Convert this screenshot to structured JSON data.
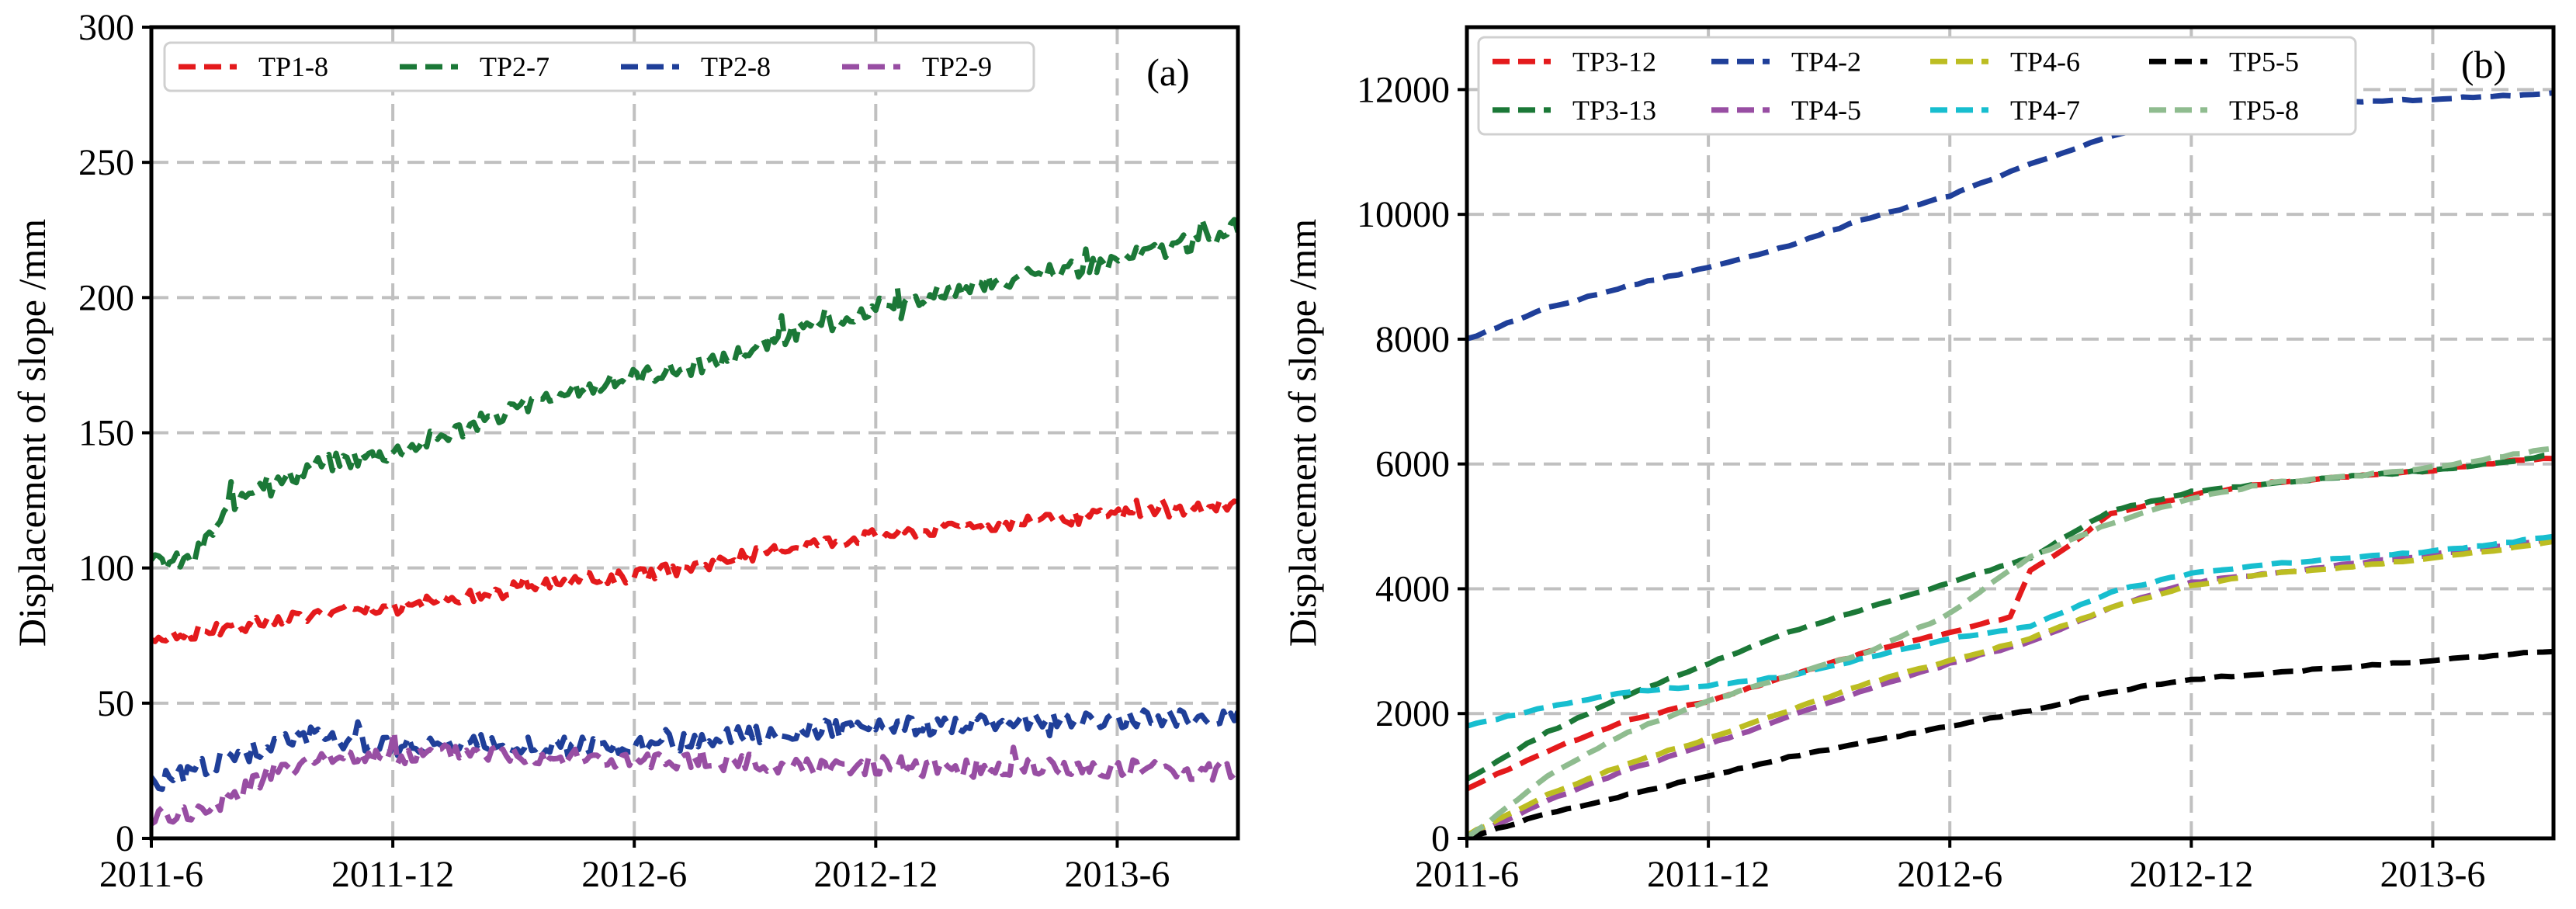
{
  "chart_data": [
    {
      "panel_label": "(a)",
      "type": "line",
      "title": "",
      "xlabel": "",
      "ylabel": "Displacement of slope /mm",
      "xlim": [
        0,
        27
      ],
      "ylim": [
        0,
        300
      ],
      "x_ticks": [
        {
          "label": "2011-6",
          "value": 0
        },
        {
          "label": "2011-12",
          "value": 6
        },
        {
          "label": "2012-6",
          "value": 12
        },
        {
          "label": "2012-12",
          "value": 18
        },
        {
          "label": "2013-6",
          "value": 24
        }
      ],
      "y_ticks": [
        0,
        50,
        100,
        150,
        200,
        250,
        300
      ],
      "grid": true,
      "legend_position": "top",
      "legend_columns": 4,
      "x_unit": "months since 2011-6",
      "series": [
        {
          "name": "TP1-8",
          "color": "#e41a1c",
          "noise": 2.5,
          "x": [
            0,
            2,
            4,
            6,
            8,
            10,
            12,
            14,
            16,
            18,
            20,
            22,
            24,
            26,
            27
          ],
          "y": [
            74,
            78,
            83,
            85,
            90,
            95,
            97,
            102,
            108,
            112,
            115,
            117,
            120,
            122,
            124
          ]
        },
        {
          "name": "TP2-7",
          "color": "#1b7837",
          "noise": 3.5,
          "x": [
            0,
            1,
            2,
            4,
            6,
            8,
            10,
            12,
            14,
            16,
            18,
            20,
            22,
            24,
            26,
            27
          ],
          "y": [
            102,
            103,
            123,
            138,
            143,
            153,
            163,
            171,
            176,
            187,
            196,
            203,
            208,
            214,
            221,
            226
          ]
        },
        {
          "name": "TP2-8",
          "color": "#1f3f99",
          "noise": 3.5,
          "x": [
            0,
            2,
            4,
            6,
            8,
            10,
            12,
            14,
            16,
            18,
            20,
            22,
            24,
            26,
            27
          ],
          "y": [
            20,
            30,
            38,
            34,
            35,
            34,
            34,
            37,
            40,
            41,
            42,
            43,
            44,
            44,
            45
          ]
        },
        {
          "name": "TP2-9",
          "color": "#984ea3",
          "noise": 3.5,
          "x": [
            0,
            1,
            2,
            3,
            4,
            6,
            8,
            10,
            12,
            14,
            16,
            18,
            20,
            22,
            24,
            26,
            27
          ],
          "y": [
            8,
            10,
            15,
            25,
            28,
            30,
            32,
            30,
            28,
            28,
            27,
            27,
            26,
            26,
            26,
            25,
            25
          ]
        }
      ]
    },
    {
      "panel_label": "(b)",
      "type": "line",
      "title": "",
      "xlabel": "",
      "ylabel": "Displacement of slope /mm",
      "xlim": [
        0,
        27
      ],
      "ylim": [
        0,
        13000
      ],
      "x_ticks": [
        {
          "label": "2011-6",
          "value": 0
        },
        {
          "label": "2011-12",
          "value": 6
        },
        {
          "label": "2012-6",
          "value": 12
        },
        {
          "label": "2012-12",
          "value": 18
        },
        {
          "label": "2013-6",
          "value": 24
        }
      ],
      "y_ticks": [
        0,
        2000,
        4000,
        6000,
        8000,
        10000,
        12000
      ],
      "grid": true,
      "legend_position": "top",
      "legend_columns": 4,
      "x_unit": "months since 2011-6",
      "series": [
        {
          "name": "TP3-12",
          "color": "#e41a1c",
          "noise": 0,
          "x": [
            0,
            2,
            4,
            6,
            8,
            10,
            12,
            13.5,
            14,
            15,
            16,
            18,
            20,
            22,
            24,
            26,
            27
          ],
          "y": [
            800,
            1400,
            1900,
            2200,
            2600,
            3000,
            3300,
            3550,
            4300,
            4700,
            5200,
            5500,
            5700,
            5800,
            5900,
            6050,
            6100
          ]
        },
        {
          "name": "TP3-13",
          "color": "#1b7837",
          "noise": 0,
          "x": [
            0,
            2,
            4,
            6,
            8,
            10,
            12,
            14,
            16,
            18,
            20,
            22,
            24,
            26,
            27
          ],
          "y": [
            950,
            1700,
            2300,
            2800,
            3300,
            3700,
            4100,
            4500,
            5250,
            5550,
            5700,
            5800,
            5900,
            6050,
            6150
          ]
        },
        {
          "name": "TP4-2",
          "color": "#1f3f99",
          "noise": 0,
          "x": [
            0,
            2,
            4,
            6,
            8,
            10,
            12,
            14,
            16,
            18,
            20,
            22,
            24,
            26,
            27
          ],
          "y": [
            8000,
            8500,
            8850,
            9150,
            9500,
            9950,
            10300,
            10800,
            11250,
            11600,
            11750,
            11800,
            11850,
            11900,
            11950
          ]
        },
        {
          "name": "TP4-5",
          "color": "#984ea3",
          "noise": 0,
          "x": [
            0,
            2,
            4,
            6,
            8,
            10,
            12,
            14,
            16,
            18,
            20,
            22,
            24,
            26,
            27
          ],
          "y": [
            0,
            600,
            1100,
            1500,
            1950,
            2400,
            2800,
            3150,
            3700,
            4100,
            4250,
            4400,
            4550,
            4700,
            4800
          ]
        },
        {
          "name": "TP4-6",
          "color": "#bcbd22",
          "noise": 0,
          "x": [
            0,
            2,
            4,
            6,
            8,
            10,
            12,
            14,
            16,
            18,
            20,
            22,
            24,
            26,
            27
          ],
          "y": [
            50,
            700,
            1200,
            1600,
            2050,
            2500,
            2850,
            3200,
            3700,
            4050,
            4250,
            4350,
            4500,
            4650,
            4750
          ]
        },
        {
          "name": "TP4-7",
          "color": "#17becf",
          "noise": 0,
          "x": [
            0,
            2,
            4,
            6,
            8,
            10,
            12,
            14,
            16,
            18,
            20,
            22,
            24,
            26,
            27
          ],
          "y": [
            1800,
            2100,
            2350,
            2450,
            2600,
            2900,
            3200,
            3400,
            3950,
            4250,
            4400,
            4500,
            4600,
            4750,
            4850
          ]
        },
        {
          "name": "TP5-5",
          "color": "#000000",
          "noise": 0,
          "x": [
            0,
            2,
            4,
            6,
            8,
            10,
            12,
            14,
            16,
            18,
            20,
            22,
            24,
            26,
            27
          ],
          "y": [
            0,
            400,
            700,
            1000,
            1300,
            1550,
            1800,
            2050,
            2350,
            2550,
            2650,
            2750,
            2850,
            2950,
            3000
          ]
        },
        {
          "name": "TP5-8",
          "color": "#8fbc8f",
          "noise": 0,
          "x": [
            0,
            2,
            4,
            6,
            8,
            10,
            12,
            13.5,
            14,
            16,
            18,
            20,
            22,
            24,
            26,
            27
          ],
          "y": [
            0,
            1000,
            1700,
            2200,
            2600,
            3000,
            3600,
            4300,
            4500,
            5050,
            5450,
            5700,
            5800,
            5950,
            6150,
            6250
          ]
        }
      ]
    }
  ]
}
